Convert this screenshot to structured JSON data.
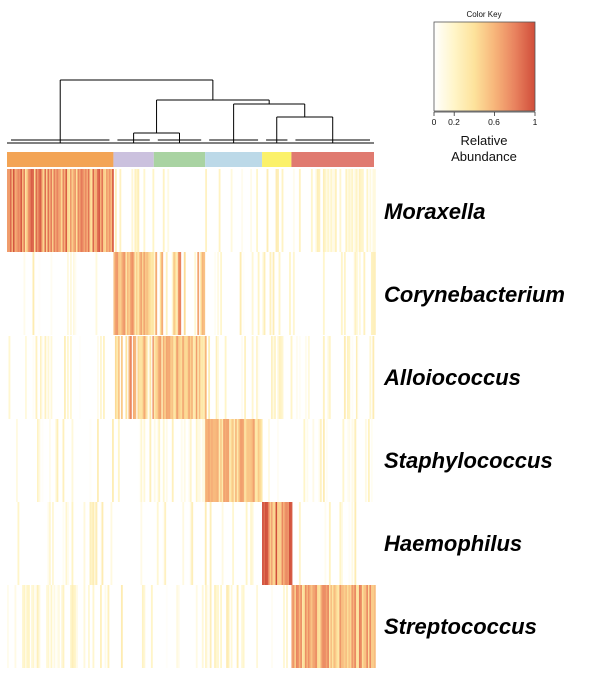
{
  "chart_data": {
    "type": "heatmap",
    "title": "",
    "rows": [
      "Moraxella",
      "Corynebacterium",
      "Alloiococcus",
      "Staphylococcus",
      "Haemophilus",
      "Streptococcus"
    ],
    "cluster_groups": [
      {
        "dominant": "Moraxella",
        "color": "#f3a455",
        "share": 0.29
      },
      {
        "dominant": "Corynebacterium",
        "color": "#cbc1de",
        "share": 0.11
      },
      {
        "dominant": "Alloiococcus",
        "color": "#a9d3a2",
        "share": 0.14
      },
      {
        "dominant": "Staphylococcus",
        "color": "#bcd9e8",
        "share": 0.155
      },
      {
        "dominant": "Haemophilus",
        "color": "#fbf16a",
        "share": 0.08
      },
      {
        "dominant": "Streptococcus",
        "color": "#e07a70",
        "share": 0.205
      }
    ],
    "approx_mean_relative_abundance": {
      "rows": [
        "Moraxella",
        "Corynebacterium",
        "Alloiococcus",
        "Staphylococcus",
        "Haemophilus",
        "Streptococcus"
      ],
      "columns": [
        "Moraxella cluster",
        "Corynebacterium cluster",
        "Alloiococcus cluster",
        "Staphylococcus cluster",
        "Haemophilus cluster",
        "Streptococcus cluster"
      ],
      "values": [
        [
          0.75,
          0.05,
          0.02,
          0.02,
          0.02,
          0.1
        ],
        [
          0.03,
          0.6,
          0.3,
          0.02,
          0.02,
          0.05
        ],
        [
          0.02,
          0.3,
          0.55,
          0.02,
          0.02,
          0.03
        ],
        [
          0.03,
          0.03,
          0.1,
          0.55,
          0.02,
          0.05
        ],
        [
          0.02,
          0.02,
          0.06,
          0.02,
          0.9,
          0.05
        ],
        [
          0.1,
          0.03,
          0.05,
          0.12,
          0.05,
          0.65
        ]
      ]
    },
    "color_key": {
      "title": "Color Key",
      "label_line1": "Relative",
      "label_line2": "Abundance",
      "ticks": [
        "0",
        "0.2",
        "0.6",
        "1"
      ],
      "tick_values": [
        0,
        0.2,
        0.6,
        1
      ],
      "range": [
        0,
        1
      ],
      "colors": [
        "#ffffff",
        "#fff5c8",
        "#fde29b",
        "#f7b57a",
        "#e9835f",
        "#d04d3a"
      ]
    },
    "dendrogram_color": "#000000"
  }
}
